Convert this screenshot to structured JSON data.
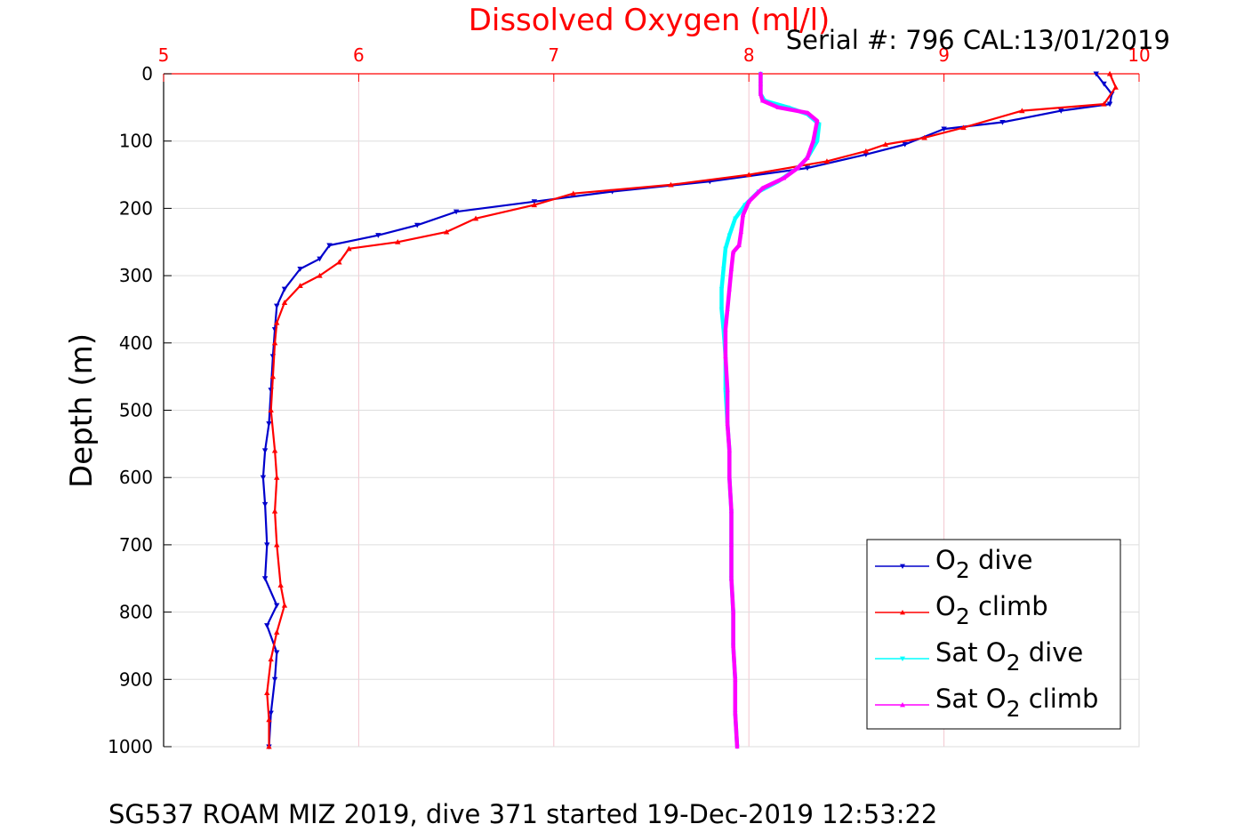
{
  "chart_data": {
    "type": "line",
    "title": "Dissolved Oxygen (ml/l)",
    "serial_text": "Serial #: 796  CAL:13/01/2019",
    "xlabel": "",
    "ylabel": "Depth (m)",
    "xlim": [
      5,
      10
    ],
    "ylim": [
      0,
      1000
    ],
    "y_reversed": true,
    "x_axis_position": "top",
    "xticks": [
      "5",
      "6",
      "7",
      "8",
      "9",
      "10"
    ],
    "yticks": [
      "0",
      "100",
      "200",
      "300",
      "400",
      "500",
      "600",
      "700",
      "800",
      "900",
      "1000"
    ],
    "grid": true,
    "legend_position": "bottom-right",
    "footer": "SG537 ROAM MIZ 2019, dive 371 started 19-Dec-2019 12:53:22",
    "series": [
      {
        "name": "O2 dive",
        "legend_main": "O",
        "legend_sub": "2",
        "legend_rest": " dive",
        "color": "#0000cc",
        "marker": "triangle-down",
        "points": [
          [
            9.78,
            0
          ],
          [
            9.82,
            15
          ],
          [
            9.86,
            30
          ],
          [
            9.85,
            45
          ],
          [
            9.6,
            55
          ],
          [
            9.3,
            72
          ],
          [
            9.0,
            82
          ],
          [
            8.8,
            105
          ],
          [
            8.6,
            120
          ],
          [
            8.3,
            140
          ],
          [
            7.8,
            160
          ],
          [
            7.3,
            175
          ],
          [
            6.9,
            190
          ],
          [
            6.5,
            205
          ],
          [
            6.3,
            225
          ],
          [
            6.1,
            240
          ],
          [
            5.85,
            255
          ],
          [
            5.8,
            275
          ],
          [
            5.7,
            290
          ],
          [
            5.62,
            320
          ],
          [
            5.58,
            345
          ],
          [
            5.57,
            380
          ],
          [
            5.56,
            420
          ],
          [
            5.55,
            470
          ],
          [
            5.54,
            520
          ],
          [
            5.52,
            560
          ],
          [
            5.51,
            600
          ],
          [
            5.52,
            640
          ],
          [
            5.53,
            700
          ],
          [
            5.52,
            750
          ],
          [
            5.58,
            790
          ],
          [
            5.53,
            820
          ],
          [
            5.58,
            860
          ],
          [
            5.57,
            900
          ],
          [
            5.55,
            950
          ],
          [
            5.54,
            1000
          ]
        ]
      },
      {
        "name": "O2 climb",
        "legend_main": "O",
        "legend_sub": "2",
        "legend_rest": " climb",
        "color": "#ff0000",
        "marker": "triangle-up",
        "points": [
          [
            9.85,
            0
          ],
          [
            9.88,
            20
          ],
          [
            9.82,
            45
          ],
          [
            9.4,
            55
          ],
          [
            9.1,
            80
          ],
          [
            8.9,
            95
          ],
          [
            8.7,
            105
          ],
          [
            8.6,
            115
          ],
          [
            8.4,
            130
          ],
          [
            8.0,
            150
          ],
          [
            7.6,
            165
          ],
          [
            7.1,
            178
          ],
          [
            6.9,
            195
          ],
          [
            6.6,
            215
          ],
          [
            6.45,
            235
          ],
          [
            6.2,
            250
          ],
          [
            5.95,
            260
          ],
          [
            5.9,
            280
          ],
          [
            5.8,
            300
          ],
          [
            5.7,
            315
          ],
          [
            5.62,
            340
          ],
          [
            5.58,
            370
          ],
          [
            5.57,
            400
          ],
          [
            5.56,
            450
          ],
          [
            5.55,
            500
          ],
          [
            5.57,
            560
          ],
          [
            5.58,
            600
          ],
          [
            5.57,
            650
          ],
          [
            5.58,
            700
          ],
          [
            5.6,
            760
          ],
          [
            5.62,
            790
          ],
          [
            5.58,
            830
          ],
          [
            5.55,
            870
          ],
          [
            5.53,
            920
          ],
          [
            5.54,
            960
          ],
          [
            5.54,
            1000
          ]
        ]
      },
      {
        "name": "Sat O2 dive",
        "legend_main": "Sat O",
        "legend_sub": "2",
        "legend_rest": " dive",
        "color": "#00ffff",
        "marker": "triangle-down",
        "points": [
          [
            8.06,
            0
          ],
          [
            8.06,
            15
          ],
          [
            8.06,
            30
          ],
          [
            8.08,
            40
          ],
          [
            8.2,
            50
          ],
          [
            8.3,
            60
          ],
          [
            8.36,
            75
          ],
          [
            8.35,
            100
          ],
          [
            8.3,
            125
          ],
          [
            8.25,
            140
          ],
          [
            8.15,
            160
          ],
          [
            8.05,
            175
          ],
          [
            7.98,
            195
          ],
          [
            7.93,
            215
          ],
          [
            7.9,
            240
          ],
          [
            7.88,
            260
          ],
          [
            7.87,
            290
          ],
          [
            7.86,
            320
          ],
          [
            7.86,
            350
          ],
          [
            7.87,
            380
          ],
          [
            7.88,
            420
          ],
          [
            7.88,
            470
          ],
          [
            7.89,
            520
          ],
          [
            7.9,
            560
          ],
          [
            7.9,
            600
          ],
          [
            7.91,
            650
          ],
          [
            7.91,
            700
          ],
          [
            7.91,
            750
          ],
          [
            7.92,
            800
          ],
          [
            7.92,
            850
          ],
          [
            7.93,
            900
          ],
          [
            7.93,
            950
          ],
          [
            7.94,
            1000
          ]
        ]
      },
      {
        "name": "Sat O2 climb",
        "legend_main": "Sat O",
        "legend_sub": "2",
        "legend_rest": " climb",
        "color": "#ff00ff",
        "marker": "triangle-up",
        "points": [
          [
            8.06,
            0
          ],
          [
            8.06,
            15
          ],
          [
            8.06,
            30
          ],
          [
            8.07,
            40
          ],
          [
            8.15,
            50
          ],
          [
            8.3,
            58
          ],
          [
            8.35,
            70
          ],
          [
            8.33,
            100
          ],
          [
            8.3,
            125
          ],
          [
            8.25,
            140
          ],
          [
            8.18,
            155
          ],
          [
            8.07,
            170
          ],
          [
            8.0,
            190
          ],
          [
            7.97,
            210
          ],
          [
            7.96,
            235
          ],
          [
            7.95,
            255
          ],
          [
            7.92,
            265
          ],
          [
            7.91,
            290
          ],
          [
            7.9,
            320
          ],
          [
            7.89,
            350
          ],
          [
            7.88,
            380
          ],
          [
            7.88,
            420
          ],
          [
            7.89,
            470
          ],
          [
            7.89,
            520
          ],
          [
            7.9,
            560
          ],
          [
            7.9,
            600
          ],
          [
            7.91,
            650
          ],
          [
            7.91,
            700
          ],
          [
            7.91,
            750
          ],
          [
            7.92,
            800
          ],
          [
            7.92,
            850
          ],
          [
            7.93,
            900
          ],
          [
            7.93,
            950
          ],
          [
            7.94,
            1000
          ]
        ]
      }
    ]
  }
}
